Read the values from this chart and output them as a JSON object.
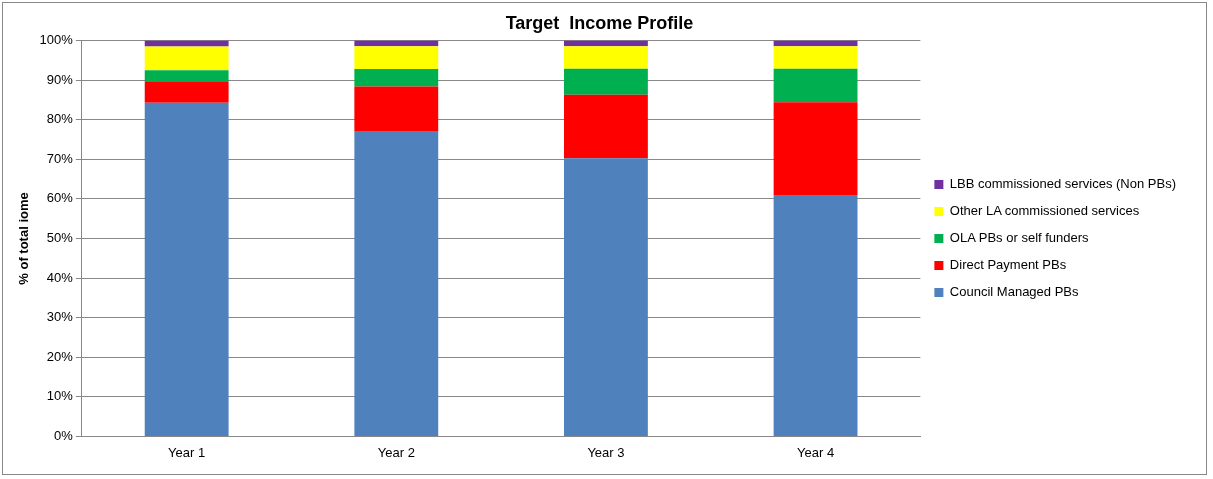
{
  "chart_data": {
    "type": "bar",
    "title": "Target  Income Profile",
    "ylabel": "% of total iome",
    "categories": [
      "Year 1",
      "Year 2",
      "Year 3",
      "Year 4"
    ],
    "stacked": true,
    "series": [
      {
        "name": "Council Managed PBs",
        "color": "#4f81bd",
        "values": [
          84.3,
          77.0,
          70.3,
          61.0
        ]
      },
      {
        "name": "Direct Payment PBs",
        "color": "#ff0000",
        "values": [
          5.4,
          11.4,
          16.0,
          23.4
        ]
      },
      {
        "name": "OLA PBs or self funders",
        "color": "#00b050",
        "values": [
          2.8,
          4.4,
          6.6,
          8.5
        ]
      },
      {
        "name": "Other LA commissioned services",
        "color": "#ffff00",
        "values": [
          6.0,
          5.8,
          5.7,
          5.7
        ]
      },
      {
        "name": "LBB commissioned services (Non PBs)",
        "color": "#7030a0",
        "values": [
          1.5,
          1.4,
          1.4,
          1.4
        ]
      }
    ],
    "ylim": [
      0,
      100
    ],
    "yticks": [
      {
        "value": 0,
        "label": "0%"
      },
      {
        "value": 10,
        "label": "10%"
      },
      {
        "value": 20,
        "label": "20%"
      },
      {
        "value": 30,
        "label": "30%"
      },
      {
        "value": 40,
        "label": "40%"
      },
      {
        "value": 50,
        "label": "50%"
      },
      {
        "value": 60,
        "label": "60%"
      },
      {
        "value": 70,
        "label": "70%"
      },
      {
        "value": 80,
        "label": "80%"
      },
      {
        "value": 90,
        "label": "90%"
      },
      {
        "value": 100,
        "label": "100%"
      }
    ],
    "grid": "y",
    "legend": "right"
  }
}
